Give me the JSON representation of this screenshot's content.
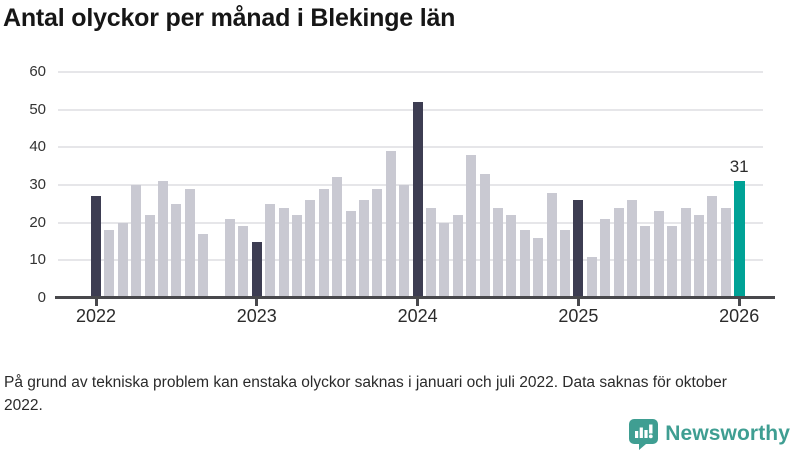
{
  "title": "Antal olyckor per månad i Blekinge län",
  "footnote": "På grund av tekniska problem kan enstaka olyckor saknas i januari och juli 2022. Data saknas för oktober 2022.",
  "brand": {
    "name": "Newsworthy",
    "color": "#3f9e92"
  },
  "chart_data": {
    "type": "bar",
    "title": "Antal olyckor per månad i Blekinge län",
    "xlabel": "",
    "ylabel": "",
    "ylim": [
      0,
      60
    ],
    "yticks": [
      0,
      10,
      20,
      30,
      40,
      50,
      60
    ],
    "grid": "horizontal",
    "x_tick_labels": [
      "2022",
      "2023",
      "2024",
      "2025",
      "2026"
    ],
    "year_tick_slots": [
      0,
      12,
      24,
      36,
      48
    ],
    "months": [
      "2022-01",
      "2022-02",
      "2022-03",
      "2022-04",
      "2022-05",
      "2022-06",
      "2022-07",
      "2022-08",
      "2022-09",
      "2022-10",
      "2022-11",
      "2022-12",
      "2023-01",
      "2023-02",
      "2023-03",
      "2023-04",
      "2023-05",
      "2023-06",
      "2023-07",
      "2023-08",
      "2023-09",
      "2023-10",
      "2023-11",
      "2023-12",
      "2024-01",
      "2024-02",
      "2024-03",
      "2024-04",
      "2024-05",
      "2024-06",
      "2024-07",
      "2024-08",
      "2024-09",
      "2024-10",
      "2024-11",
      "2024-12",
      "2025-01",
      "2025-02",
      "2025-03",
      "2025-04",
      "2025-05",
      "2025-06",
      "2025-07",
      "2025-08",
      "2025-09",
      "2025-10",
      "2025-11",
      "2025-12",
      "2026-01"
    ],
    "values": [
      27,
      18,
      20,
      30,
      22,
      31,
      25,
      29,
      17,
      null,
      21,
      19,
      15,
      25,
      24,
      22,
      26,
      29,
      32,
      23,
      26,
      29,
      39,
      30,
      52,
      24,
      20,
      22,
      38,
      33,
      24,
      22,
      18,
      16,
      28,
      18,
      26,
      11,
      21,
      24,
      26,
      19,
      23,
      19,
      24,
      22,
      27,
      24,
      31
    ],
    "missing": [
      "2022-10"
    ],
    "annotation": {
      "month": "2026-01",
      "value": 31,
      "label": "31"
    },
    "colors": {
      "bar_default": "#c9c9d2",
      "bar_january": "#3d3d52",
      "bar_latest": "#00a296",
      "gridline": "#e6e6e9",
      "axis": "#48484c"
    }
  }
}
